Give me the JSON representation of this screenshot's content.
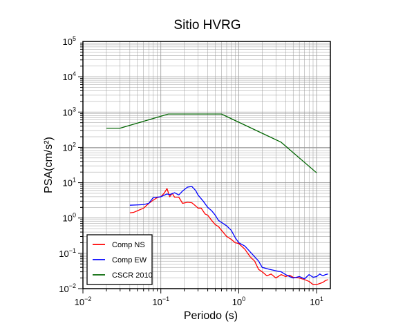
{
  "chart_data": {
    "type": "line",
    "title": "Sitio HVRG",
    "xlabel": "Periodo (s)",
    "ylabel": "PSA(cm/s²)",
    "x_scale": "log",
    "y_scale": "log",
    "xlim": [
      0.01,
      15
    ],
    "ylim": [
      0.01,
      100000
    ],
    "grid": true,
    "legend_position": "bottom-left",
    "x_ticks": [
      {
        "value": 0.01,
        "base": "10",
        "exp": "−2"
      },
      {
        "value": 0.1,
        "base": "10",
        "exp": "−1"
      },
      {
        "value": 1,
        "base": "10",
        "exp": "0"
      },
      {
        "value": 10,
        "base": "10",
        "exp": "1"
      }
    ],
    "y_ticks": [
      {
        "value": 0.01,
        "base": "10",
        "exp": "−2"
      },
      {
        "value": 0.1,
        "base": "10",
        "exp": "−1"
      },
      {
        "value": 1,
        "base": "10",
        "exp": "0"
      },
      {
        "value": 10,
        "base": "10",
        "exp": "1"
      },
      {
        "value": 100,
        "base": "10",
        "exp": "2"
      },
      {
        "value": 1000,
        "base": "10",
        "exp": "3"
      },
      {
        "value": 10000,
        "base": "10",
        "exp": "4"
      },
      {
        "value": 100000,
        "base": "10",
        "exp": "5"
      }
    ],
    "series": [
      {
        "name": "Comp NS",
        "color": "#ff0000",
        "points": [
          [
            0.04,
            1.4
          ],
          [
            0.045,
            1.45
          ],
          [
            0.05,
            1.6
          ],
          [
            0.06,
            1.9
          ],
          [
            0.07,
            2.6
          ],
          [
            0.08,
            3.2
          ],
          [
            0.09,
            3.8
          ],
          [
            0.1,
            4.0
          ],
          [
            0.11,
            5.0
          ],
          [
            0.12,
            6.8
          ],
          [
            0.13,
            4.0
          ],
          [
            0.14,
            5.0
          ],
          [
            0.15,
            3.9
          ],
          [
            0.17,
            3.9
          ],
          [
            0.19,
            2.6
          ],
          [
            0.22,
            2.8
          ],
          [
            0.25,
            2.7
          ],
          [
            0.28,
            2.2
          ],
          [
            0.3,
            1.9
          ],
          [
            0.33,
            1.9
          ],
          [
            0.37,
            1.3
          ],
          [
            0.4,
            1.2
          ],
          [
            0.45,
            0.85
          ],
          [
            0.5,
            0.65
          ],
          [
            0.55,
            0.57
          ],
          [
            0.6,
            0.45
          ],
          [
            0.7,
            0.3
          ],
          [
            0.8,
            0.25
          ],
          [
            0.9,
            0.2
          ],
          [
            1.0,
            0.19
          ],
          [
            1.2,
            0.13
          ],
          [
            1.4,
            0.08
          ],
          [
            1.6,
            0.06
          ],
          [
            1.8,
            0.035
          ],
          [
            2.0,
            0.03
          ],
          [
            2.3,
            0.023
          ],
          [
            2.6,
            0.026
          ],
          [
            3.0,
            0.02
          ],
          [
            3.5,
            0.025
          ],
          [
            4.0,
            0.022
          ],
          [
            4.5,
            0.024
          ],
          [
            5.0,
            0.021
          ],
          [
            6.0,
            0.02
          ],
          [
            7.0,
            0.018
          ],
          [
            8.0,
            0.016
          ],
          [
            9.0,
            0.013
          ],
          [
            10.0,
            0.013
          ],
          [
            11.0,
            0.014
          ],
          [
            12.0,
            0.015
          ],
          [
            13.0,
            0.017
          ],
          [
            14.0,
            0.018
          ]
        ]
      },
      {
        "name": "Comp EW",
        "color": "#0000ff",
        "points": [
          [
            0.04,
            2.3
          ],
          [
            0.05,
            2.35
          ],
          [
            0.06,
            2.4
          ],
          [
            0.07,
            2.6
          ],
          [
            0.08,
            3.8
          ],
          [
            0.09,
            3.9
          ],
          [
            0.1,
            4.0
          ],
          [
            0.12,
            4.8
          ],
          [
            0.13,
            4.6
          ],
          [
            0.15,
            5.2
          ],
          [
            0.17,
            4.5
          ],
          [
            0.19,
            5.8
          ],
          [
            0.22,
            7.5
          ],
          [
            0.25,
            7.8
          ],
          [
            0.28,
            6.0
          ],
          [
            0.3,
            4.5
          ],
          [
            0.35,
            3.0
          ],
          [
            0.4,
            2.0
          ],
          [
            0.45,
            1.6
          ],
          [
            0.5,
            1.2
          ],
          [
            0.55,
            0.85
          ],
          [
            0.6,
            0.75
          ],
          [
            0.7,
            0.6
          ],
          [
            0.8,
            0.45
          ],
          [
            0.9,
            0.28
          ],
          [
            1.0,
            0.2
          ],
          [
            1.2,
            0.16
          ],
          [
            1.4,
            0.11
          ],
          [
            1.6,
            0.08
          ],
          [
            1.8,
            0.06
          ],
          [
            2.0,
            0.04
          ],
          [
            2.5,
            0.035
          ],
          [
            3.0,
            0.032
          ],
          [
            3.5,
            0.03
          ],
          [
            4.0,
            0.025
          ],
          [
            4.5,
            0.022
          ],
          [
            5.0,
            0.02
          ],
          [
            6.0,
            0.022
          ],
          [
            7.0,
            0.019
          ],
          [
            8.0,
            0.025
          ],
          [
            9.0,
            0.021
          ],
          [
            10.0,
            0.022
          ],
          [
            11.0,
            0.026
          ],
          [
            12.0,
            0.023
          ],
          [
            13.0,
            0.025
          ],
          [
            14.0,
            0.026
          ]
        ]
      },
      {
        "name": "CSCR 2010",
        "color": "#006400",
        "points": [
          [
            0.02,
            350
          ],
          [
            0.03,
            350
          ],
          [
            0.125,
            880
          ],
          [
            0.6,
            880
          ],
          [
            3.5,
            140
          ],
          [
            10,
            19
          ]
        ]
      }
    ]
  }
}
